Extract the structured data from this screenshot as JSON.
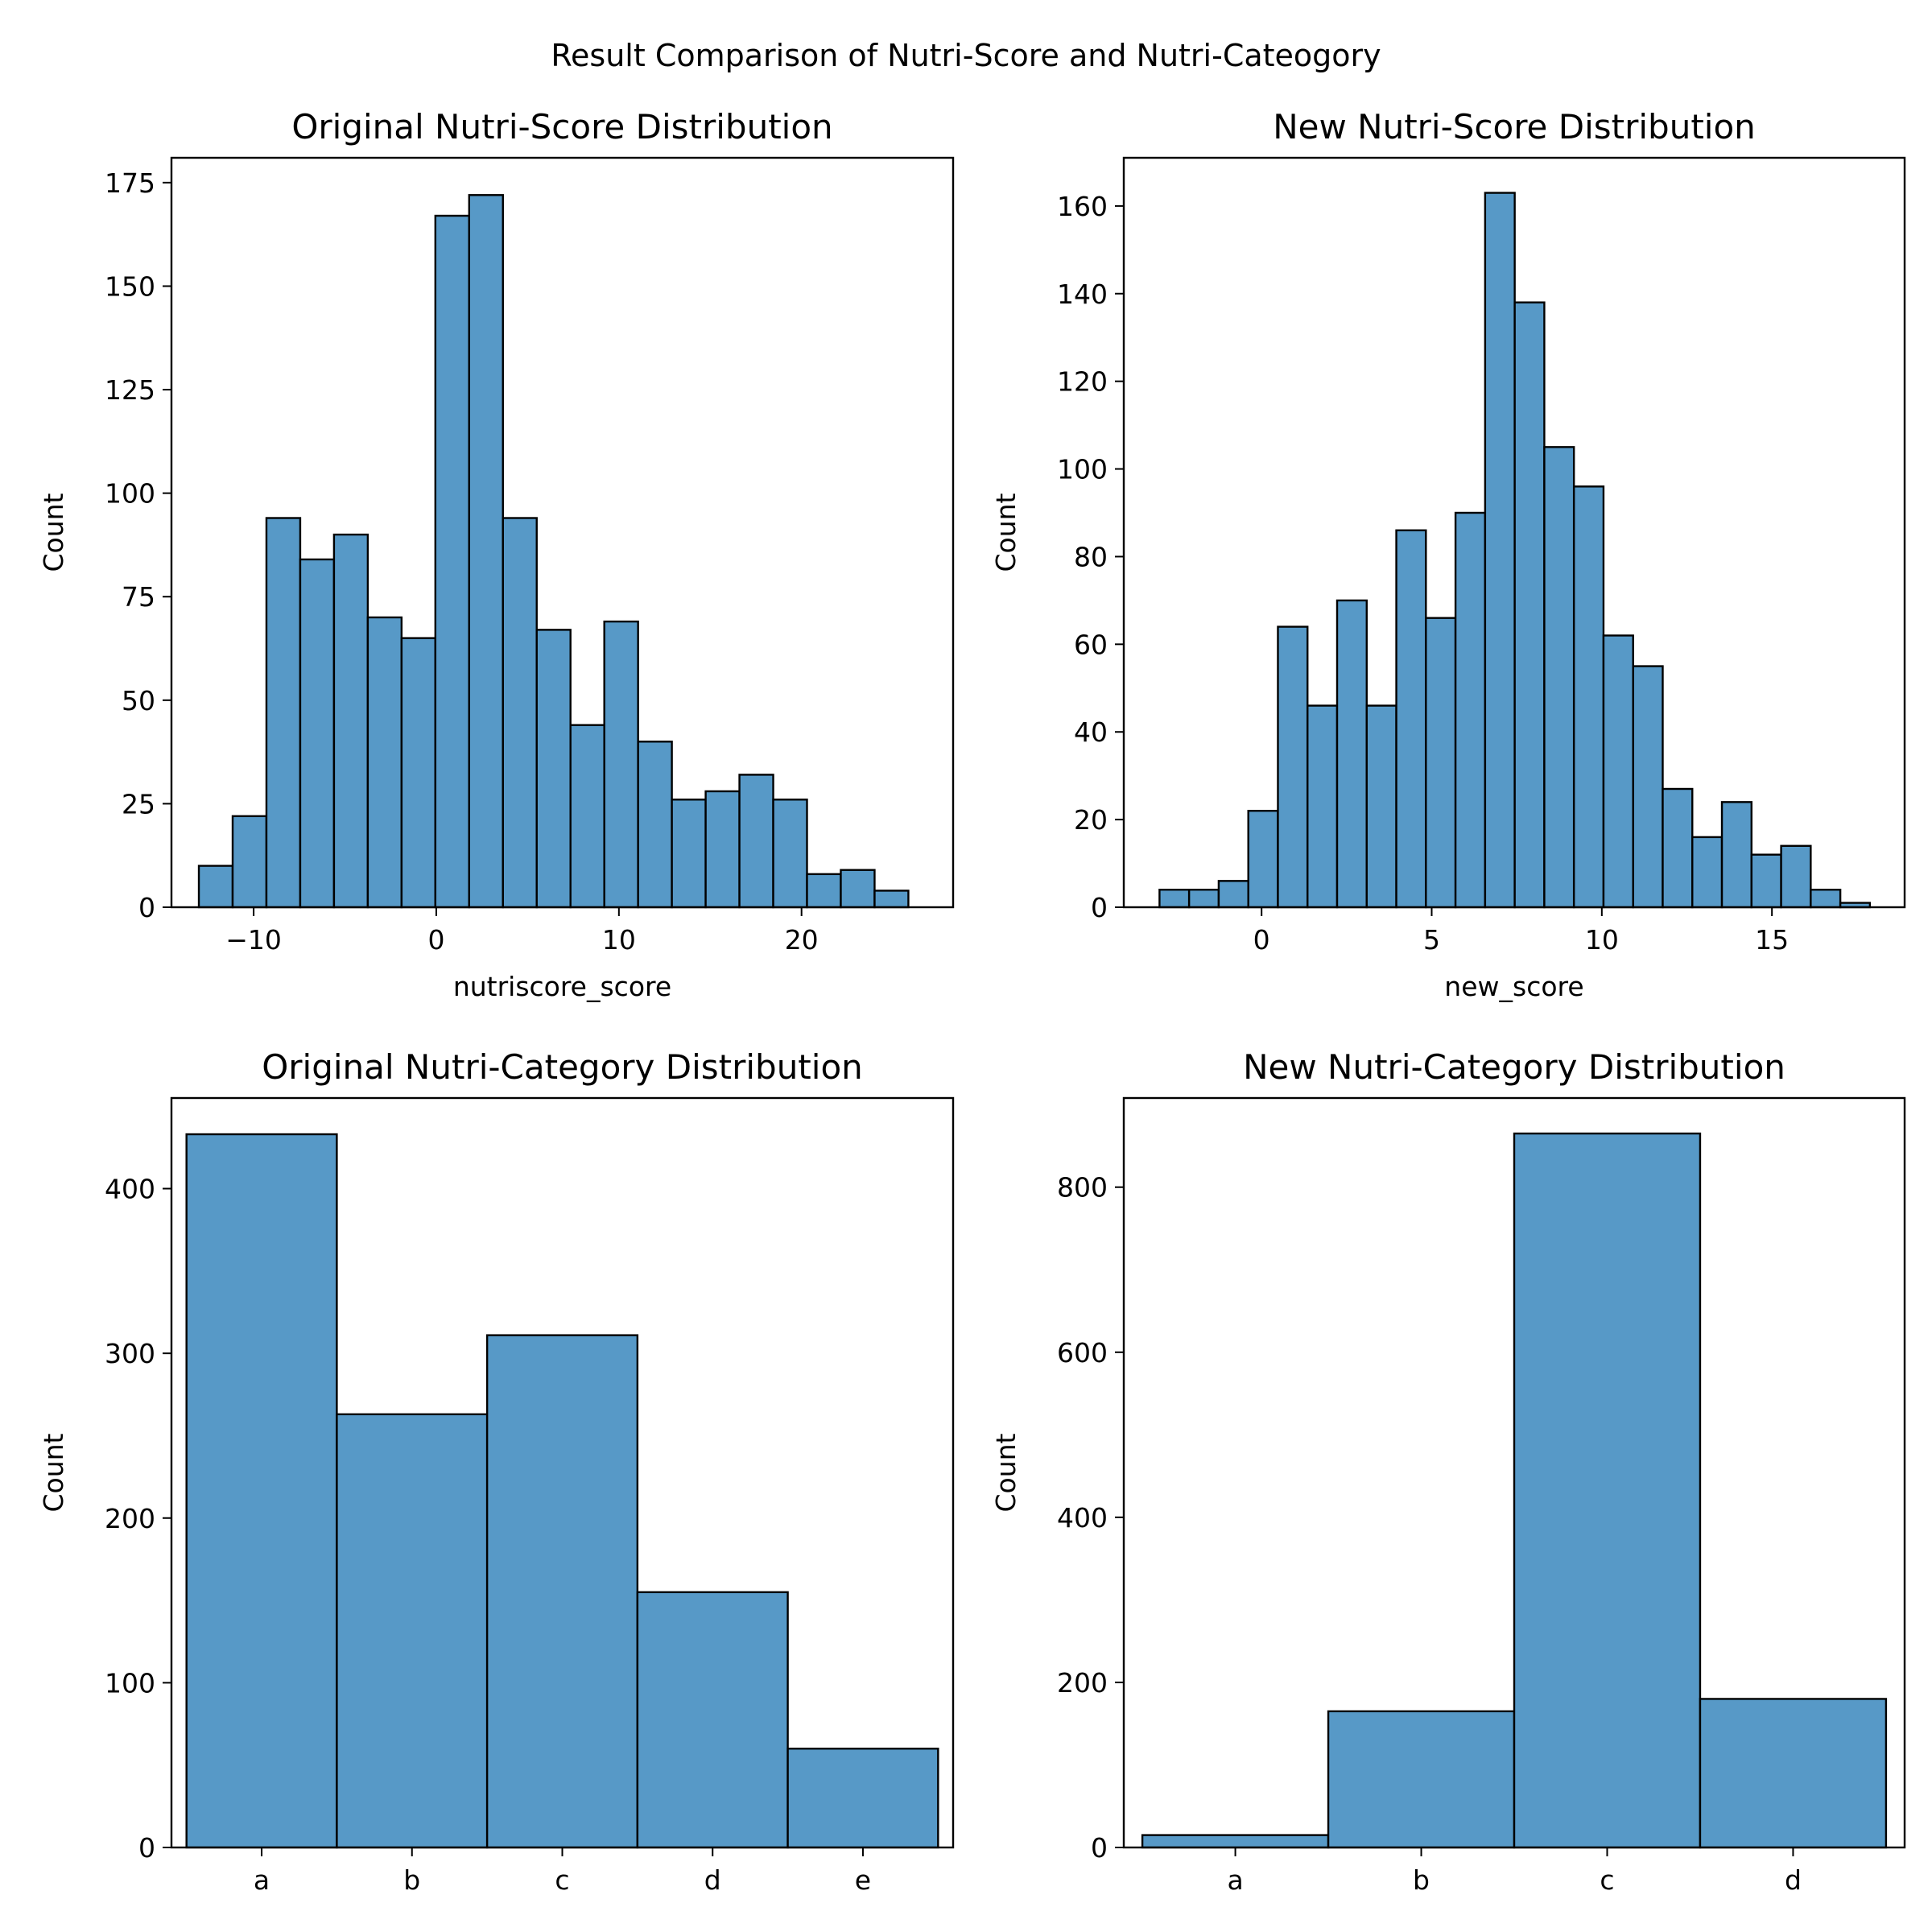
{
  "figure": {
    "suptitle": "Result Comparison of Nutri-Score and Nutri-Cateogory",
    "bar_color": "#5799c7",
    "edge_color": "#000000"
  },
  "chart_data": [
    {
      "type": "bar",
      "subtype": "histogram",
      "title": "Original Nutri-Score Distribution",
      "xlabel": "nutriscore_score",
      "ylabel": "Count",
      "xlim": [
        -14.5,
        28.3
      ],
      "ylim": [
        0,
        181
      ],
      "xticks": [
        -10,
        0,
        10,
        20
      ],
      "xtick_labels": [
        "−10",
        "0",
        "10",
        "20"
      ],
      "yticks": [
        0,
        25,
        50,
        75,
        100,
        125,
        150,
        175
      ],
      "bin_edges": [
        -13.0,
        -11.15,
        -9.3,
        -7.45,
        -5.6,
        -3.75,
        -1.9,
        -0.05,
        1.8,
        3.65,
        5.5,
        7.35,
        9.2,
        11.05,
        12.9,
        14.75,
        16.6,
        18.45,
        20.3,
        22.15,
        24.0,
        25.85
      ],
      "values": [
        10,
        22,
        94,
        84,
        90,
        70,
        65,
        167,
        172,
        94,
        67,
        44,
        69,
        40,
        26,
        28,
        32,
        26,
        8,
        9,
        4
      ]
    },
    {
      "type": "bar",
      "subtype": "histogram",
      "title": "New Nutri-Score Distribution",
      "xlabel": "new_score",
      "ylabel": "Count",
      "xlim": [
        -4.05,
        18.9
      ],
      "ylim": [
        0,
        171
      ],
      "xticks": [
        0,
        5,
        10,
        15
      ],
      "xtick_labels": [
        "0",
        "5",
        "10",
        "15"
      ],
      "yticks": [
        0,
        20,
        40,
        60,
        80,
        100,
        120,
        140,
        160
      ],
      "bin_edges": [
        -3.0,
        -2.13,
        -1.26,
        -0.39,
        0.48,
        1.35,
        2.22,
        3.09,
        3.96,
        4.83,
        5.7,
        6.57,
        7.44,
        8.31,
        9.18,
        10.05,
        10.92,
        11.79,
        12.66,
        13.53,
        14.4,
        15.27,
        16.14,
        17.01,
        17.88
      ],
      "values": [
        4,
        4,
        6,
        22,
        64,
        46,
        70,
        46,
        86,
        66,
        90,
        163,
        138,
        105,
        96,
        62,
        55,
        27,
        16,
        24,
        12,
        14,
        4,
        1
      ]
    },
    {
      "type": "bar",
      "subtype": "categorical-histogram",
      "title": "Original Nutri-Category Distribution",
      "xlabel": "",
      "ylabel": "Count",
      "categories": [
        "a",
        "b",
        "c",
        "d",
        "e"
      ],
      "values": [
        433,
        263,
        311,
        155,
        60
      ],
      "ylim": [
        0,
        455
      ],
      "yticks": [
        0,
        100,
        200,
        300,
        400
      ]
    },
    {
      "type": "bar",
      "subtype": "categorical-histogram",
      "title": "New Nutri-Category Distribution",
      "xlabel": "",
      "ylabel": "Count",
      "categories": [
        "a",
        "b",
        "c",
        "d"
      ],
      "values": [
        15,
        165,
        865,
        180
      ],
      "ylim": [
        0,
        908
      ],
      "yticks": [
        0,
        200,
        400,
        600,
        800
      ]
    }
  ]
}
